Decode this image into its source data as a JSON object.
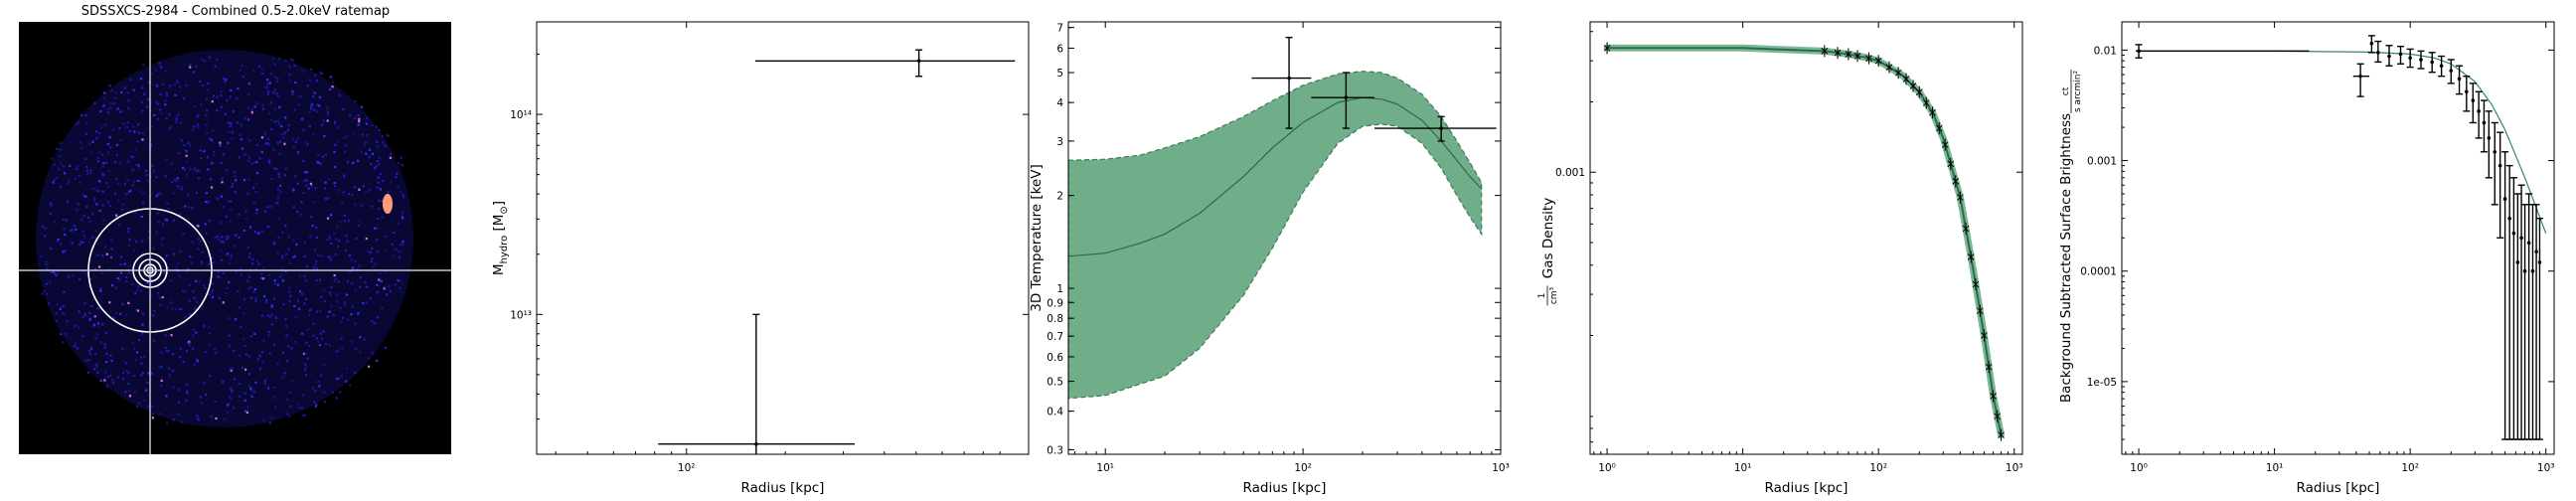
{
  "chart_data": [
    {
      "type": "image",
      "title": "SDSSXCS-2984 - Combined 0.5-2.0keV ratemap",
      "crosshair": true,
      "annuli_count": 5,
      "colors": {
        "background": "#000000",
        "emission": "#2a1fd6",
        "annuli": "#ffffff",
        "crosshair": "#c8c8c8"
      }
    },
    {
      "type": "scatter",
      "xlabel": "Radius [kpc]",
      "ylabel_main": "M",
      "ylabel_sub": "hydro",
      "ylabel_unit": " [M",
      "ylabel_unit_sub": "⊙",
      "ylabel_end": "]",
      "xscale": "log",
      "yscale": "log",
      "xlim": [
        35,
        1100
      ],
      "ylim": [
        2000000000000.0,
        290000000000000.0
      ],
      "xticks": [
        {
          "v": 100,
          "label": "10²"
        }
      ],
      "yticks": [
        {
          "v": 10000000000000.0,
          "label": "10¹³"
        },
        {
          "v": 100000000000000.0,
          "label": "10¹⁴"
        }
      ],
      "points": [
        {
          "x": 163,
          "y": 2250000000000.0,
          "xlo": 82,
          "xhi": 325,
          "ylo": 2000000000000.0,
          "yhi": 10000000000000.0
        },
        {
          "x": 510,
          "y": 185000000000000.0,
          "xlo": 162,
          "xhi": 1000,
          "ylo": 155000000000000.0,
          "yhi": 210000000000000.0
        }
      ],
      "colors": {
        "errorbar": "#000000"
      }
    },
    {
      "type": "line",
      "xlabel": "Radius [kpc]",
      "ylabel": "3D Temperature [keV]",
      "xscale": "log",
      "yscale": "log",
      "xlim": [
        6.5,
        1000
      ],
      "ylim": [
        0.29,
        7.3
      ],
      "xticks": [
        {
          "v": 10,
          "label": "10¹"
        },
        {
          "v": 100,
          "label": "10²"
        },
        {
          "v": 1000,
          "label": "10³"
        }
      ],
      "yticks": [
        {
          "v": 0.3,
          "label": "0.3"
        },
        {
          "v": 0.4,
          "label": "0.4"
        },
        {
          "v": 0.5,
          "label": "0.5"
        },
        {
          "v": 0.6,
          "label": "0.6"
        },
        {
          "v": 0.7,
          "label": "0.7"
        },
        {
          "v": 0.8,
          "label": "0.8"
        },
        {
          "v": 0.9,
          "label": "0.9"
        },
        {
          "v": 1,
          "label": "1"
        },
        {
          "v": 2,
          "label": "2"
        },
        {
          "v": 3,
          "label": "3"
        },
        {
          "v": 4,
          "label": "4"
        },
        {
          "v": 5,
          "label": "5"
        },
        {
          "v": 6,
          "label": "6"
        },
        {
          "v": 7,
          "label": "7"
        }
      ],
      "model_x": [
        6.5,
        10,
        15,
        20,
        30,
        50,
        70,
        100,
        150,
        200,
        250,
        300,
        400,
        500,
        600,
        700,
        800
      ],
      "model_y": [
        1.27,
        1.3,
        1.4,
        1.5,
        1.75,
        2.3,
        2.85,
        3.45,
        4.0,
        4.15,
        4.1,
        3.95,
        3.5,
        3.0,
        2.6,
        2.3,
        2.1
      ],
      "band_hi": [
        2.6,
        2.62,
        2.7,
        2.85,
        3.1,
        3.6,
        4.05,
        4.55,
        4.95,
        5.05,
        5.0,
        4.8,
        4.25,
        3.6,
        3.0,
        2.55,
        2.2
      ],
      "band_lo": [
        0.44,
        0.45,
        0.49,
        0.52,
        0.64,
        0.95,
        1.35,
        2.05,
        2.95,
        3.35,
        3.4,
        3.35,
        2.95,
        2.45,
        2.0,
        1.7,
        1.5
      ],
      "points": [
        {
          "x": 85,
          "y": 4.8,
          "xlo": 55,
          "xhi": 110,
          "ylo": 3.3,
          "yhi": 6.5
        },
        {
          "x": 165,
          "y": 4.15,
          "xlo": 110,
          "xhi": 230,
          "ylo": 3.3,
          "yhi": 5.0
        },
        {
          "x": 500,
          "y": 3.3,
          "xlo": 230,
          "xhi": 950,
          "ylo": 3.0,
          "yhi": 3.6
        }
      ],
      "colors": {
        "band": "#6fae88",
        "line": "#2d6b48",
        "errorbar": "#000000"
      }
    },
    {
      "type": "line",
      "xlabel": "Radius [kpc]",
      "ylabel": "Gas Density",
      "ylabel_frac_num": "1",
      "ylabel_frac_den": "cm³",
      "xscale": "log",
      "yscale": "log",
      "xlim": [
        0.75,
        1150
      ],
      "ylim": [
        6.2e-05,
        0.0044
      ],
      "xticks": [
        {
          "v": 1,
          "label": "10⁰"
        },
        {
          "v": 10,
          "label": "10¹"
        },
        {
          "v": 100,
          "label": "10²"
        },
        {
          "v": 1000,
          "label": "10³"
        }
      ],
      "yticks": [
        {
          "v": 0.001,
          "label": "0.001"
        }
      ],
      "model_x": [
        1,
        10,
        40,
        60,
        80,
        100,
        150,
        200,
        250,
        300,
        400,
        500,
        600,
        700,
        800
      ],
      "model_y": [
        0.0034,
        0.0034,
        0.0033,
        0.0032,
        0.0031,
        0.003,
        0.0026,
        0.0022,
        0.0018,
        0.0014,
        0.00078,
        0.00038,
        0.0002,
        0.00011,
        7.5e-05
      ],
      "data_x": [
        1,
        40,
        50,
        60,
        70,
        85,
        100,
        120,
        140,
        160,
        180,
        200,
        225,
        250,
        280,
        310,
        340,
        370,
        400,
        440,
        480,
        520,
        560,
        600,
        650,
        700,
        750,
        800
      ],
      "colors": {
        "band": "#7ab898",
        "line": "#2d6b48",
        "marker": "#000000"
      }
    },
    {
      "type": "scatter",
      "xlabel": "Radius [kpc]",
      "ylabel": "Background Subtracted Surface Brightness",
      "ylabel_frac_num": "ct",
      "ylabel_frac_den": "s arcmin²",
      "xscale": "log",
      "yscale": "log",
      "xlim": [
        0.75,
        1150
      ],
      "ylim": [
        2.2e-06,
        0.018
      ],
      "xticks": [
        {
          "v": 1,
          "label": "10⁰"
        },
        {
          "v": 10,
          "label": "10¹"
        },
        {
          "v": 100,
          "label": "10²"
        },
        {
          "v": 1000,
          "label": "10³"
        }
      ],
      "yticks": [
        {
          "v": 0.01,
          "label": "0.01"
        },
        {
          "v": 0.001,
          "label": "0.001"
        },
        {
          "v": 0.0001,
          "label": "0.0001"
        },
        {
          "v": 1e-05,
          "label": "1e-05"
        }
      ],
      "model_x": [
        1,
        10,
        50,
        100,
        150,
        200,
        300,
        400,
        500,
        700,
        1000
      ],
      "model_y": [
        0.0098,
        0.0098,
        0.0096,
        0.0092,
        0.0085,
        0.0075,
        0.0052,
        0.0032,
        0.0019,
        0.0007,
        0.00022
      ],
      "points": [
        {
          "x": 1,
          "y": 0.0098,
          "xlo": 0.95,
          "xhi": 18,
          "ylo": 0.0085,
          "yhi": 0.0112
        },
        {
          "x": 43,
          "y": 0.0058,
          "xlo": 38,
          "xhi": 50,
          "ylo": 0.0038,
          "yhi": 0.0075
        },
        {
          "x": 52,
          "y": 0.0115,
          "ylo": 0.0095,
          "yhi": 0.0135
        },
        {
          "x": 58,
          "y": 0.0095,
          "ylo": 0.0078,
          "yhi": 0.012
        },
        {
          "x": 70,
          "y": 0.0088,
          "ylo": 0.0072,
          "yhi": 0.011
        },
        {
          "x": 85,
          "y": 0.0092,
          "ylo": 0.0075,
          "yhi": 0.0108
        },
        {
          "x": 100,
          "y": 0.0085,
          "ylo": 0.007,
          "yhi": 0.0102
        },
        {
          "x": 120,
          "y": 0.0082,
          "ylo": 0.0068,
          "yhi": 0.0098
        },
        {
          "x": 145,
          "y": 0.0078,
          "ylo": 0.0063,
          "yhi": 0.0095
        },
        {
          "x": 170,
          "y": 0.0072,
          "ylo": 0.0058,
          "yhi": 0.0088
        },
        {
          "x": 200,
          "y": 0.0065,
          "ylo": 0.005,
          "yhi": 0.0082
        },
        {
          "x": 230,
          "y": 0.0055,
          "ylo": 0.004,
          "yhi": 0.0072
        },
        {
          "x": 260,
          "y": 0.0042,
          "ylo": 0.0028,
          "yhi": 0.0058
        },
        {
          "x": 290,
          "y": 0.0035,
          "ylo": 0.0022,
          "yhi": 0.005
        },
        {
          "x": 320,
          "y": 0.0028,
          "ylo": 0.0016,
          "yhi": 0.0042
        },
        {
          "x": 350,
          "y": 0.0022,
          "ylo": 0.0012,
          "yhi": 0.0035
        },
        {
          "x": 380,
          "y": 0.0016,
          "ylo": 0.0007,
          "yhi": 0.0028
        },
        {
          "x": 420,
          "y": 0.0012,
          "ylo": 0.0004,
          "yhi": 0.0022
        },
        {
          "x": 460,
          "y": 0.0009,
          "ylo": 0.0002,
          "yhi": 0.0018
        },
        {
          "x": 500,
          "y": 0.00045,
          "ylo": 3e-06,
          "yhi": 0.0012
        },
        {
          "x": 540,
          "y": 0.0003,
          "ylo": 3e-06,
          "yhi": 0.0009
        },
        {
          "x": 580,
          "y": 0.00022,
          "ylo": 3e-06,
          "yhi": 0.0007
        },
        {
          "x": 620,
          "y": 0.00012,
          "ylo": 3e-06,
          "yhi": 0.0005
        },
        {
          "x": 660,
          "y": 0.0002,
          "ylo": 3e-06,
          "yhi": 0.0006
        },
        {
          "x": 700,
          "y": 0.0001,
          "ylo": 3e-06,
          "yhi": 0.0004
        },
        {
          "x": 750,
          "y": 0.00018,
          "ylo": 3e-06,
          "yhi": 0.0005
        },
        {
          "x": 800,
          "y": 0.0001,
          "ylo": 3e-06,
          "yhi": 0.0004
        },
        {
          "x": 850,
          "y": 0.00015,
          "ylo": 3e-06,
          "yhi": 0.0004
        },
        {
          "x": 900,
          "y": 0.00012,
          "ylo": 3e-06,
          "yhi": 0.0003
        }
      ],
      "colors": {
        "line": "#2e8b57",
        "errorbar": "#000000",
        "fill": "#888888"
      }
    }
  ]
}
